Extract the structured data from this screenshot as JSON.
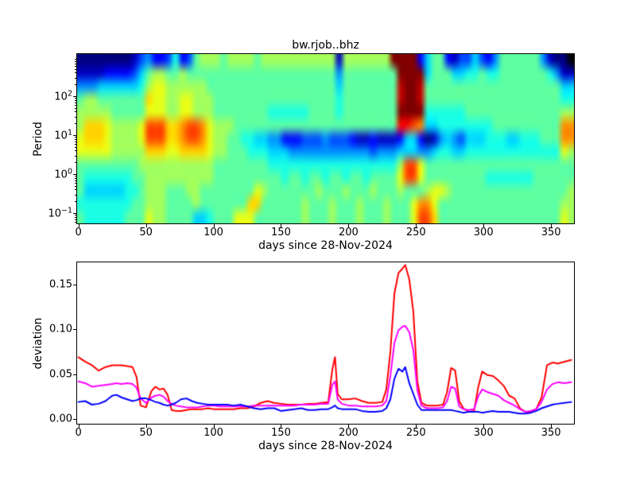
{
  "figure": {
    "background": "#ffffff",
    "text_color": "#000000"
  },
  "title": "bw.rjob..bhz",
  "chart_data": [
    {
      "type": "heatmap",
      "title": "bw.rjob..bhz",
      "xlabel": "days since 28-Nov-2024",
      "ylabel": "Period",
      "x_ticks": [
        0,
        50,
        100,
        150,
        200,
        250,
        300,
        350
      ],
      "x_tick_labels": [
        "0",
        "50",
        "100",
        "150",
        "200",
        "250",
        "300",
        "350"
      ],
      "xlim": [
        -1,
        367
      ],
      "y_scale": "log",
      "y_ticks": [
        {
          "value": 100,
          "base": "10",
          "exp": "2"
        },
        {
          "value": 10,
          "base": "10",
          "exp": "1"
        },
        {
          "value": 1,
          "base": "10",
          "exp": "0"
        },
        {
          "value": 0.1,
          "base": "10",
          "exp": "−1"
        }
      ],
      "ylim_log10": [
        -1.265,
        3.08
      ],
      "colormap": "jet",
      "legend": "none",
      "grid_lines": "off",
      "grid": {
        "day_start": 0,
        "day_step": 5,
        "n_cols": 73,
        "n_rows": 13,
        "value_encoding": "hex digit 0-f, linear 0-1 through jet colormap",
        "rows": [
          "0000000013422362378887888878888888888818888888ffff2577213353247777774100",
          "1111222235788778777777777777777777777747777777 7ffff5777556676677777776411",
          "4445555556899888888777777777777777777757777777 7effe7777777777777777777755",
          "7887777777a998899888777777777777777777677777777effe7777777777777777777766",
          "8888877777999889988877777777666666777767777777 7ffff6666667777777777777788",
          "8aaa988889cccaabccb9888777777777777777777777777ddcb5566666666777777777 7bb",
          "9aaa988889cccaabccb988776655442223334333211211 12552014543555666556667 77bb",
          "9999988888aaa99aaaa988777666555444444444444344 45554456655666666666666 6698",
          "7777777778888888888877777777666666666666666666 68cc97777777777777777777777",
          "7666666677888888888877777777776776776776776777 79cc9777777777666666677 7777",
          "7555555667888777887777777798777777787778777877 7877789987777777777777777788",
          "6666666677888777787777777aa7777778777877787778 7779bb97777777777777777 7788",
          "7666666777988777755677799977777778777877787778 7779cca7777777777777777 7798"
        ]
      }
    },
    {
      "type": "line",
      "xlabel": "days since 28-Nov-2024",
      "ylabel": "deviation",
      "x_ticks": [
        0,
        50,
        100,
        150,
        200,
        250,
        300,
        350
      ],
      "x_tick_labels": [
        "0",
        "50",
        "100",
        "150",
        "200",
        "250",
        "300",
        "350"
      ],
      "y_ticks": [
        0,
        0.05,
        0.1,
        0.15
      ],
      "y_tick_labels": [
        "0.00",
        "0.05",
        "0.10",
        "0.15"
      ],
      "xlim": [
        -1,
        367
      ],
      "ylim": [
        -0.0053,
        0.1749
      ],
      "legend": "none",
      "grid_lines": "off",
      "x": [
        0,
        5,
        10,
        15,
        20,
        25,
        28,
        32,
        36,
        40,
        43,
        46,
        50,
        54,
        57,
        60,
        63,
        66,
        69,
        72,
        76,
        80,
        84,
        88,
        92,
        96,
        100,
        105,
        110,
        115,
        120,
        125,
        130,
        135,
        140,
        145,
        150,
        155,
        160,
        165,
        170,
        175,
        180,
        185,
        188,
        190,
        192,
        195,
        200,
        205,
        210,
        215,
        220,
        225,
        228,
        231,
        234,
        237,
        240,
        242,
        245,
        248,
        251,
        254,
        258,
        262,
        266,
        270,
        273,
        276,
        279,
        282,
        285,
        289,
        293,
        296,
        299,
        303,
        307,
        311,
        315,
        319,
        323,
        327,
        331,
        335,
        339,
        343,
        347,
        351,
        355,
        360,
        365
      ],
      "series": [
        {
          "name": "red",
          "color": "#ff0000",
          "values": [
            0.069,
            0.064,
            0.06,
            0.054,
            0.058,
            0.06,
            0.06,
            0.06,
            0.059,
            0.058,
            0.047,
            0.015,
            0.013,
            0.031,
            0.036,
            0.033,
            0.034,
            0.027,
            0.01,
            0.009,
            0.009,
            0.01,
            0.011,
            0.011,
            0.011,
            0.012,
            0.011,
            0.011,
            0.011,
            0.011,
            0.012,
            0.012,
            0.014,
            0.018,
            0.02,
            0.018,
            0.017,
            0.016,
            0.016,
            0.016,
            0.017,
            0.017,
            0.018,
            0.019,
            0.055,
            0.069,
            0.028,
            0.022,
            0.022,
            0.023,
            0.02,
            0.018,
            0.018,
            0.019,
            0.033,
            0.075,
            0.14,
            0.163,
            0.168,
            0.172,
            0.156,
            0.12,
            0.042,
            0.018,
            0.015,
            0.015,
            0.015,
            0.016,
            0.03,
            0.057,
            0.054,
            0.02,
            0.012,
            0.008,
            0.009,
            0.035,
            0.053,
            0.049,
            0.048,
            0.043,
            0.037,
            0.026,
            0.023,
            0.012,
            0.008,
            0.008,
            0.011,
            0.024,
            0.06,
            0.063,
            0.062,
            0.064,
            0.066
          ]
        },
        {
          "name": "magenta",
          "color": "#ff00ff",
          "values": [
            0.042,
            0.04,
            0.036,
            0.037,
            0.038,
            0.039,
            0.04,
            0.039,
            0.04,
            0.039,
            0.035,
            0.023,
            0.018,
            0.024,
            0.026,
            0.027,
            0.025,
            0.02,
            0.017,
            0.015,
            0.014,
            0.013,
            0.013,
            0.013,
            0.014,
            0.015,
            0.015,
            0.014,
            0.014,
            0.014,
            0.014,
            0.014,
            0.015,
            0.015,
            0.015,
            0.015,
            0.015,
            0.015,
            0.015,
            0.016,
            0.016,
            0.016,
            0.017,
            0.017,
            0.038,
            0.042,
            0.022,
            0.017,
            0.015,
            0.015,
            0.014,
            0.014,
            0.014,
            0.015,
            0.02,
            0.048,
            0.085,
            0.099,
            0.103,
            0.104,
            0.097,
            0.077,
            0.032,
            0.015,
            0.012,
            0.012,
            0.012,
            0.013,
            0.02,
            0.036,
            0.034,
            0.014,
            0.011,
            0.01,
            0.011,
            0.025,
            0.033,
            0.03,
            0.028,
            0.026,
            0.021,
            0.018,
            0.015,
            0.011,
            0.008,
            0.009,
            0.011,
            0.019,
            0.033,
            0.039,
            0.041,
            0.04,
            0.041
          ]
        },
        {
          "name": "blue",
          "color": "#0000ff",
          "values": [
            0.019,
            0.02,
            0.016,
            0.017,
            0.02,
            0.026,
            0.027,
            0.024,
            0.022,
            0.02,
            0.021,
            0.023,
            0.023,
            0.021,
            0.019,
            0.018,
            0.016,
            0.015,
            0.016,
            0.018,
            0.022,
            0.023,
            0.02,
            0.018,
            0.017,
            0.016,
            0.016,
            0.016,
            0.016,
            0.015,
            0.016,
            0.014,
            0.012,
            0.011,
            0.012,
            0.012,
            0.009,
            0.01,
            0.011,
            0.012,
            0.01,
            0.01,
            0.011,
            0.011,
            0.013,
            0.015,
            0.012,
            0.011,
            0.011,
            0.011,
            0.009,
            0.008,
            0.008,
            0.009,
            0.012,
            0.022,
            0.045,
            0.056,
            0.053,
            0.058,
            0.04,
            0.028,
            0.016,
            0.01,
            0.01,
            0.01,
            0.01,
            0.01,
            0.01,
            0.01,
            0.009,
            0.008,
            0.007,
            0.008,
            0.008,
            0.008,
            0.007,
            0.008,
            0.009,
            0.008,
            0.008,
            0.008,
            0.007,
            0.006,
            0.006,
            0.007,
            0.009,
            0.012,
            0.014,
            0.016,
            0.017,
            0.018,
            0.019
          ]
        }
      ]
    }
  ]
}
